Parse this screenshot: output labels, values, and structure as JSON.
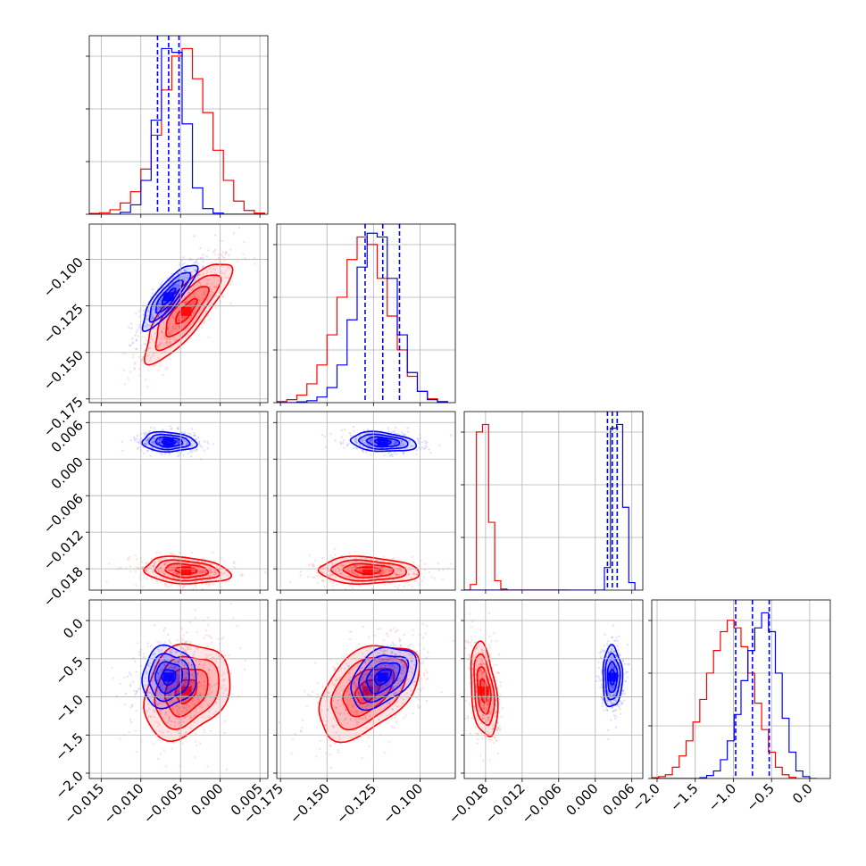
{
  "chart_data": {
    "type": "corner",
    "parameters": [
      {
        "range": [
          -0.0165,
          0.006
        ],
        "ticks": [
          -0.015,
          -0.01,
          -0.005,
          0.0,
          0.005
        ],
        "tick_labels": [
          "−0.015",
          "−0.010",
          "−0.005",
          "0.000",
          "0.005"
        ]
      },
      {
        "range": [
          -0.177,
          -0.081
        ],
        "ticks": [
          -0.175,
          -0.15,
          -0.125,
          -0.1
        ],
        "tick_labels": [
          "−0.175",
          "−0.150",
          "−0.125",
          "−0.100"
        ]
      },
      {
        "range": [
          -0.0215,
          0.0078
        ],
        "ticks": [
          -0.018,
          -0.012,
          -0.006,
          0.0,
          0.006
        ],
        "tick_labels": [
          "−0.018",
          "−0.012",
          "−0.006",
          "0.000",
          "0.006"
        ]
      },
      {
        "range": [
          -2.07,
          0.27
        ],
        "ticks": [
          -2.0,
          -1.5,
          -1.0,
          -0.5,
          0.0
        ],
        "tick_labels": [
          "−2.0",
          "−1.5",
          "−1.0",
          "−0.5",
          "0.0"
        ]
      }
    ],
    "series": [
      {
        "color": "#ff0000",
        "means": [
          -0.0043,
          -0.128,
          -0.0183,
          -0.92
        ],
        "sigmas": [
          0.0027,
          0.0135,
          0.0011,
          0.31
        ],
        "corr": {
          "1,0": 0.82,
          "2,0": -0.2,
          "2,1": -0.1,
          "3,0": 0.25,
          "3,1": 0.45,
          "3,2": -0.35
        },
        "hist_bin_edges": [
          [
            -0.0165,
            -0.0152,
            -0.0139,
            -0.0126,
            -0.0113,
            -0.01,
            -0.0087,
            -0.0074,
            -0.0061,
            -0.0048,
            -0.0035,
            -0.0022,
            -0.0009,
            0.0004,
            0.0017,
            0.003,
            0.0043,
            0.0056
          ],
          [
            -0.177,
            -0.1716,
            -0.1662,
            -0.1608,
            -0.1554,
            -0.15,
            -0.1446,
            -0.1392,
            -0.1338,
            -0.1284,
            -0.123,
            -0.1176,
            -0.1122,
            -0.1068,
            -0.1014,
            -0.096,
            -0.0906,
            -0.0852
          ],
          [
            -0.0215,
            -0.0205,
            -0.0195,
            -0.0185,
            -0.0175,
            -0.0165,
            -0.0155,
            -0.0145,
            -0.0135,
            -0.0125,
            -0.0115,
            -0.0105,
            -0.0095,
            -0.0085,
            -0.0075,
            -0.0065,
            -0.0055,
            -0.0045
          ],
          [
            -2.07,
            -1.98,
            -1.89,
            -1.8,
            -1.71,
            -1.62,
            -1.53,
            -1.44,
            -1.35,
            -1.26,
            -1.17,
            -1.08,
            -0.99,
            -0.9,
            -0.81,
            -0.72,
            -0.63,
            -0.54,
            -0.45,
            -0.36,
            -0.27,
            -0.18
          ]
        ],
        "hist_counts": [
          [
            2,
            4,
            12,
            30,
            60,
            120,
            210,
            330,
            420,
            440,
            360,
            270,
            170,
            90,
            35,
            10,
            3
          ],
          [
            3,
            8,
            20,
            50,
            100,
            180,
            280,
            380,
            440,
            420,
            330,
            230,
            140,
            70,
            30,
            10,
            3
          ],
          [
            0,
            15,
            420,
            440,
            180,
            25,
            3,
            0,
            0,
            0,
            0,
            0,
            0,
            0,
            0,
            0,
            0
          ],
          [
            2,
            5,
            10,
            30,
            60,
            100,
            150,
            210,
            280,
            340,
            390,
            420,
            400,
            350,
            280,
            200,
            130,
            70,
            30,
            10,
            3
          ]
        ]
      },
      {
        "color": "#0000ff",
        "means": [
          -0.0065,
          -0.12,
          0.0028,
          -0.74
        ],
        "sigmas": [
          0.0017,
          0.0088,
          0.0008,
          0.2
        ],
        "corr": {
          "1,0": 0.85,
          "2,0": -0.1,
          "2,1": -0.25,
          "3,0": 0.05,
          "3,1": 0.4,
          "3,2": 0.0
        },
        "quantiles": [
          [
            -0.0079,
            -0.0065,
            -0.0052
          ],
          [
            -0.1295,
            -0.12,
            -0.111
          ],
          [
            0.002,
            0.0028,
            0.0036
          ],
          [
            -0.97,
            -0.75,
            -0.53
          ]
        ],
        "hist_bin_edges": [
          [
            -0.0165,
            -0.0152,
            -0.0139,
            -0.0126,
            -0.0113,
            -0.01,
            -0.0087,
            -0.0074,
            -0.0061,
            -0.0048,
            -0.0035,
            -0.0022,
            -0.0009,
            0.0004,
            0.0017,
            0.003,
            0.0043,
            0.0056
          ],
          [
            -0.177,
            -0.1716,
            -0.1662,
            -0.1608,
            -0.1554,
            -0.15,
            -0.1446,
            -0.1392,
            -0.1338,
            -0.1284,
            -0.123,
            -0.1176,
            -0.1122,
            -0.1068,
            -0.1014,
            -0.096,
            -0.0906,
            -0.0852
          ],
          [
            -0.0215,
            -0.0205,
            -0.0195,
            -0.0185,
            -0.0175,
            -0.0165,
            -0.0155,
            -0.0145,
            -0.0135,
            -0.0125,
            -0.0115,
            -0.0105,
            -0.0095,
            -0.0085,
            -0.0075,
            -0.0065,
            -0.0055,
            -0.0045,
            -0.0035,
            -0.0025,
            -0.0015,
            -0.0005,
            0.0005,
            0.0015,
            0.0025,
            0.0035,
            0.0045,
            0.0055,
            0.0065
          ],
          [
            -2.07,
            -1.98,
            -1.89,
            -1.8,
            -1.71,
            -1.62,
            -1.53,
            -1.44,
            -1.35,
            -1.26,
            -1.17,
            -1.08,
            -0.99,
            -0.9,
            -0.81,
            -0.72,
            -0.63,
            -0.54,
            -0.45,
            -0.36,
            -0.27,
            -0.18,
            -0.09,
            0.0,
            0.09
          ]
        ],
        "hist_counts": [
          [
            0,
            0,
            0,
            5,
            25,
            90,
            250,
            440,
            430,
            240,
            70,
            15,
            3,
            0,
            0,
            0,
            0
          ],
          [
            0,
            0,
            2,
            5,
            15,
            40,
            100,
            220,
            360,
            450,
            440,
            330,
            180,
            80,
            30,
            8,
            2
          ],
          [
            0,
            0,
            0,
            0,
            0,
            0,
            0,
            0,
            0,
            0,
            0,
            0,
            0,
            0,
            0,
            0,
            0,
            0,
            0,
            0,
            0,
            0,
            0,
            60,
            430,
            440,
            220,
            20
          ],
          [
            0,
            0,
            0,
            0,
            0,
            0,
            0,
            2,
            8,
            20,
            50,
            100,
            170,
            260,
            340,
            400,
            440,
            390,
            280,
            160,
            70,
            20,
            5,
            0
          ]
        ]
      }
    ],
    "contour_levels_sigma": [
      0.5,
      1.0,
      1.5,
      2.0
    ],
    "grid": true,
    "title": "",
    "legend": null
  }
}
